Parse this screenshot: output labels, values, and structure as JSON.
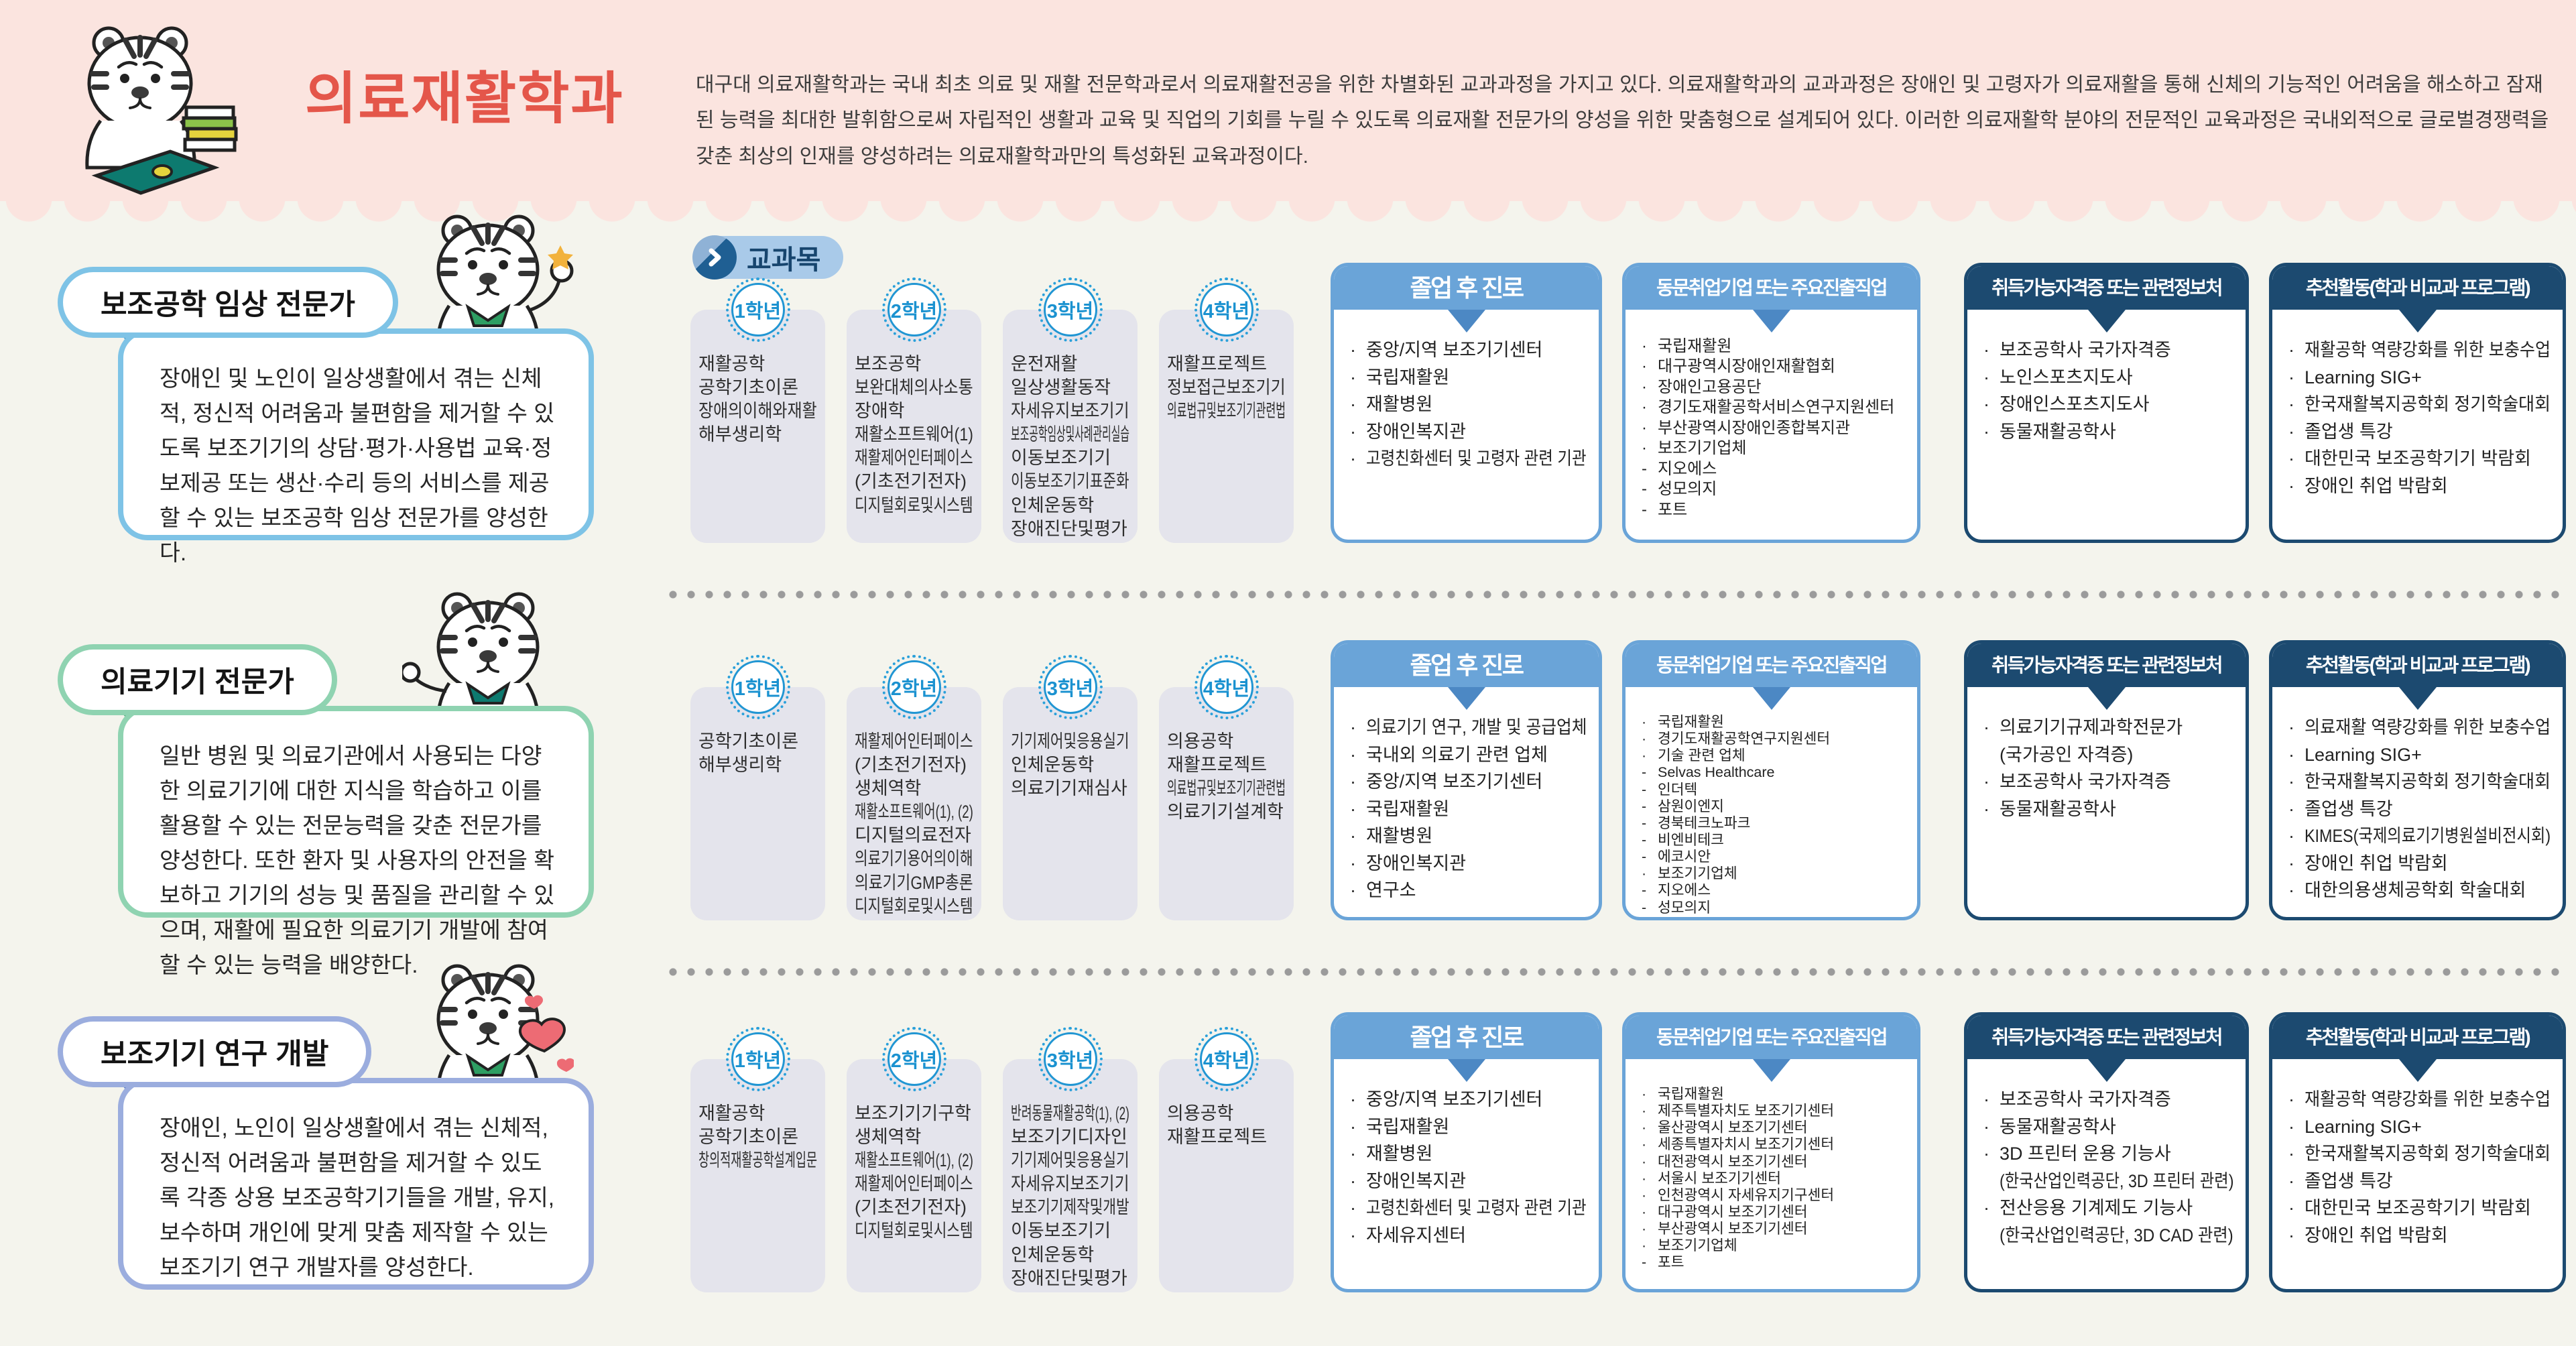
{
  "header": {
    "title": "의료재활학과",
    "description": "대구대 의료재활학과는 국내 최초 의료 및 재활 전문학과로서 의료재활전공을 위한 차별화된 교과과정을 가지고 있다. 의료재활학과의 교과과정은 장애인 및 고령자가 의료재활을 통해 신체의 기능적인 어려움을 해소하고 잠재된 능력을 최대한 발휘함으로써 자립적인 생활과 교육 및 직업의 기회를 누릴 수 있도록 의료재활 전문가의 양성을 위한 맞춤형으로 설계되어 있다. 이러한 의료재활학 분야의 전문적인 교육과정은 국내외적으로 글로벌경쟁력을 갖춘 최상의 인재를 양성하려는 의료재활학과만의 특성화된 교육과정이다.",
    "mascot_icon": "tiger-studying-laptop-icon"
  },
  "curriculum_label": "교과목",
  "curriculum_arrow_icon": "chevron-right-icon",
  "colors": {
    "header_bg": "#fbe4df",
    "page_bg": "#f4f4ed",
    "title_red": "#e4564a",
    "box_blue": "#6aa4d8",
    "box_blue_pointer": "#4c88c4",
    "box_navy": "#1c4a70",
    "year_badge_blue": "#2196d3",
    "course_card_bg": "#e4e4ec",
    "row1_accent": "#7ec3e6",
    "row1_accent_dark": "#4c9fce",
    "row2_accent": "#8fd3b1",
    "row2_accent_dark": "#5caf85",
    "row3_accent": "#9badde",
    "row3_accent_dark": "#5b7fc7"
  },
  "rows": [
    {
      "profile": {
        "title": "보조공학 임상 전문가",
        "description": "장애인 및 노인이 일상생활에서 겪는 신체적, 정신적 어려움과 불편함을 제거할 수 있도록 보조기기의 상담·평가·사용법 교육·정보제공 또는 생산·수리 등의 서비스를 제공할 수 있는 보조공학 임상 전문가를 양성한다.",
        "mascot_icon": "tiger-waving-icon"
      },
      "years": [
        {
          "label": "1학년",
          "courses": [
            "재활공학",
            "공학기초이론",
            "장애의이해와재활",
            "해부생리학"
          ]
        },
        {
          "label": "2학년",
          "courses": [
            "보조공학",
            "보완대체의사소통",
            "장애학",
            "재활소프트웨어(1)",
            "재활제어인터페이스",
            "(기초전기전자)",
            "디지털회로및시스템"
          ]
        },
        {
          "label": "3학년",
          "courses": [
            "운전재활",
            "일상생활동작",
            "자세유지보조기기",
            "보조공학임상및사례관리실습",
            "이동보조기기",
            "이동보조기기표준화",
            "인체운동학",
            "장애진단및평가"
          ]
        },
        {
          "label": "4학년",
          "courses": [
            "재활프로젝트",
            "정보접근보조기기",
            "의료법규및보조기기관련법"
          ]
        }
      ],
      "boxes": [
        {
          "title": "졸업 후 진로",
          "items": [
            {
              "b": "·",
              "t": "중앙/지역 보조기기센터"
            },
            {
              "b": "·",
              "t": "국립재활원"
            },
            {
              "b": "·",
              "t": "재활병원"
            },
            {
              "b": "·",
              "t": "장애인복지관"
            },
            {
              "b": "·",
              "t": "고령친화센터 및 고령자 관련 기관"
            }
          ]
        },
        {
          "title": "동문취업기업 또는 주요진출직업",
          "items": [
            {
              "b": "·",
              "t": "국립재활원"
            },
            {
              "b": "·",
              "t": "대구광역시장애인재활협회"
            },
            {
              "b": "·",
              "t": "장애인고용공단"
            },
            {
              "b": "·",
              "t": "경기도재활공학서비스연구지원센터"
            },
            {
              "b": "·",
              "t": "부산광역시장애인종합복지관"
            },
            {
              "b": "·",
              "t": "보조기기업체"
            },
            {
              "b": "-",
              "t": "지오에스"
            },
            {
              "b": "-",
              "t": "성모의지"
            },
            {
              "b": "-",
              "t": "포트"
            }
          ]
        },
        {
          "title": "취득가능자격증 또는 관련정보처",
          "items": [
            {
              "b": "·",
              "t": "보조공학사 국가자격증"
            },
            {
              "b": "·",
              "t": "노인스포츠지도사"
            },
            {
              "b": "·",
              "t": "장애인스포츠지도사"
            },
            {
              "b": "·",
              "t": "동물재활공학사"
            }
          ]
        },
        {
          "title": "추천활동(학과 비교과 프로그램)",
          "items": [
            {
              "b": "·",
              "t": "재활공학 역량강화를 위한 보충수업"
            },
            {
              "b": "·",
              "t": "Learning SIG+"
            },
            {
              "b": "·",
              "t": "한국재활복지공학회 정기학술대회"
            },
            {
              "b": "·",
              "t": "졸업생 특강"
            },
            {
              "b": "·",
              "t": "대한민국 보조공학기기 박람회"
            },
            {
              "b": "·",
              "t": "장애인 취업 박람회"
            }
          ]
        }
      ]
    },
    {
      "profile": {
        "title": "의료기기 전문가",
        "description": "일반 병원 및 의료기관에서 사용되는 다양한 의료기기에 대한 지식을 학습하고 이를 활용할 수 있는 전문능력을 갖춘 전문가를 양성한다. 또한 환자 및 사용자의 안전을 확보하고 기기의 성능 및 품질을 관리할 수 있으며, 재활에 필요한 의료기기 개발에 참여할 수 있는 능력을 배양한다.",
        "mascot_icon": "tiger-pointing-icon"
      },
      "years": [
        {
          "label": "1학년",
          "courses": [
            "공학기초이론",
            "해부생리학"
          ]
        },
        {
          "label": "2학년",
          "courses": [
            "재활제어인터페이스",
            "(기초전기전자)",
            "생체역학",
            "재활소프트웨어(1), (2)",
            "디지털의료전자",
            "의료기기용어의이해",
            "의료기기GMP총론",
            "디지털회로및시스템"
          ]
        },
        {
          "label": "3학년",
          "courses": [
            "기기제어및응용실기",
            "인체운동학",
            "의료기기재심사"
          ]
        },
        {
          "label": "4학년",
          "courses": [
            "의용공학",
            "재활프로젝트",
            "의료법규및보조기기관련법",
            "의료기기설계학"
          ]
        }
      ],
      "boxes": [
        {
          "title": "졸업 후 진로",
          "items": [
            {
              "b": "·",
              "t": "의료기기 연구, 개발 및 공급업체"
            },
            {
              "b": "·",
              "t": "국내외 의료기 관련 업체"
            },
            {
              "b": "·",
              "t": "중앙/지역 보조기기센터"
            },
            {
              "b": "·",
              "t": "국립재활원"
            },
            {
              "b": "·",
              "t": "재활병원"
            },
            {
              "b": "·",
              "t": "장애인복지관"
            },
            {
              "b": "·",
              "t": "연구소"
            }
          ]
        },
        {
          "title": "동문취업기업 또는 주요진출직업",
          "items": [
            {
              "b": "·",
              "t": "국립재활원"
            },
            {
              "b": "·",
              "t": "경기도재활공학연구지원센터"
            },
            {
              "b": "·",
              "t": "기술 관련 업체"
            },
            {
              "b": "-",
              "t": "Selvas Healthcare"
            },
            {
              "b": "-",
              "t": "인더텍"
            },
            {
              "b": "-",
              "t": "삼원이엔지"
            },
            {
              "b": "-",
              "t": "경북테크노파크"
            },
            {
              "b": "-",
              "t": "비엔비테크"
            },
            {
              "b": "-",
              "t": "에코시안"
            },
            {
              "b": "·",
              "t": "보조기기업체"
            },
            {
              "b": "-",
              "t": "지오에스"
            },
            {
              "b": "-",
              "t": "성모의지"
            }
          ]
        },
        {
          "title": "취득가능자격증 또는 관련정보처",
          "items": [
            {
              "b": "·",
              "t": "의료기기규제과학전문가"
            },
            {
              "b": "",
              "t": "(국가공인 자격증)"
            },
            {
              "b": "·",
              "t": "보조공학사 국가자격증"
            },
            {
              "b": "·",
              "t": "동물재활공학사"
            }
          ]
        },
        {
          "title": "추천활동(학과 비교과 프로그램)",
          "items": [
            {
              "b": "·",
              "t": "의료재활 역량강화를 위한 보충수업"
            },
            {
              "b": "·",
              "t": "Learning SIG+"
            },
            {
              "b": "·",
              "t": "한국재활복지공학회 정기학술대회"
            },
            {
              "b": "·",
              "t": "졸업생 특강"
            },
            {
              "b": "·",
              "t": "KIMES(국제의료기기병원설비전시회)"
            },
            {
              "b": "·",
              "t": "장애인 취업 박람회"
            },
            {
              "b": "·",
              "t": "대한의용생체공학회 학술대회"
            }
          ]
        }
      ]
    },
    {
      "profile": {
        "title": "보조기기 연구 개발",
        "description": "장애인, 노인이 일상생활에서 겪는 신체적, 정신적 어려움과 불편함을 제거할 수 있도록 각종 상용 보조공학기기들을 개발, 유지, 보수하며 개인에 맞게 맞춤 제작할 수 있는 보조기기 연구 개발자를 양성한다.",
        "mascot_icon": "tiger-heart-icon"
      },
      "years": [
        {
          "label": "1학년",
          "courses": [
            "재활공학",
            "공학기초이론",
            "창의적재활공학설계입문"
          ]
        },
        {
          "label": "2학년",
          "courses": [
            "보조기기기구학",
            "생체역학",
            "재활소프트웨어(1), (2)",
            "재활제어인터페이스",
            "(기초전기전자)",
            "디지털회로및시스템"
          ]
        },
        {
          "label": "3학년",
          "courses": [
            "반려동물재활공학(1), (2)",
            "보조기기디자인",
            "기기제어및응용실기",
            "자세유지보조기기",
            "보조기기제작및개발",
            "이동보조기기",
            "인체운동학",
            "장애진단및평가"
          ]
        },
        {
          "label": "4학년",
          "courses": [
            "의용공학",
            "재활프로젝트"
          ]
        }
      ],
      "boxes": [
        {
          "title": "졸업 후 진로",
          "items": [
            {
              "b": "·",
              "t": "중앙/지역 보조기기센터"
            },
            {
              "b": "·",
              "t": "국립재활원"
            },
            {
              "b": "·",
              "t": "재활병원"
            },
            {
              "b": "·",
              "t": "장애인복지관"
            },
            {
              "b": "·",
              "t": "고령친화센터 및 고령자 관련 기관"
            },
            {
              "b": "·",
              "t": "자세유지센터"
            }
          ]
        },
        {
          "title": "동문취업기업 또는 주요진출직업",
          "items": [
            {
              "b": "·",
              "t": "국립재활원"
            },
            {
              "b": "·",
              "t": "제주특별자치도 보조기기센터"
            },
            {
              "b": "·",
              "t": "울산광역시 보조기기센터"
            },
            {
              "b": "·",
              "t": "세종특별자치시 보조기기센터"
            },
            {
              "b": "·",
              "t": "대전광역시 보조기기센터"
            },
            {
              "b": "·",
              "t": "서울시 보조기기센터"
            },
            {
              "b": "·",
              "t": "인천광역시 자세유지기구센터"
            },
            {
              "b": "·",
              "t": "대구광역시 보조기기센터"
            },
            {
              "b": "·",
              "t": "부산광역시 보조기기센터"
            },
            {
              "b": "·",
              "t": "보조기기업체"
            },
            {
              "b": "-",
              "t": "포트"
            }
          ]
        },
        {
          "title": "취득가능자격증 또는 관련정보처",
          "items": [
            {
              "b": "·",
              "t": "보조공학사 국가자격증"
            },
            {
              "b": "·",
              "t": "동물재활공학사"
            },
            {
              "b": "·",
              "t": "3D 프린터 운용 기능사"
            },
            {
              "b": "",
              "t": "(한국산업인력공단, 3D 프린터 관련)"
            },
            {
              "b": "·",
              "t": "전산응용 기계제도 기능사"
            },
            {
              "b": "",
              "t": "(한국산업인력공단, 3D CAD 관련)"
            }
          ]
        },
        {
          "title": "추천활동(학과 비교과 프로그램)",
          "items": [
            {
              "b": "·",
              "t": "재활공학 역량강화를 위한 보충수업"
            },
            {
              "b": "·",
              "t": "Learning SIG+"
            },
            {
              "b": "·",
              "t": "한국재활복지공학회 정기학술대회"
            },
            {
              "b": "·",
              "t": "졸업생 특강"
            },
            {
              "b": "·",
              "t": "대한민국 보조공학기기 박람회"
            },
            {
              "b": "·",
              "t": "장애인 취업 박람회"
            }
          ]
        }
      ]
    }
  ]
}
